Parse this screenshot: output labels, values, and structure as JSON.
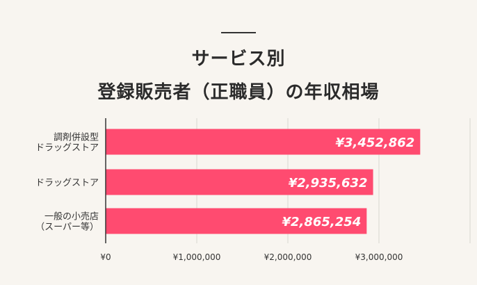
{
  "chart_data": {
    "type": "bar",
    "orientation": "horizontal",
    "title_lines": [
      "サービス別",
      "登録販売者（正職員）の年収相場"
    ],
    "categories": [
      [
        "調剤併設型",
        "ドラッグストア"
      ],
      [
        "ドラッグストア"
      ],
      [
        "一般の小売店",
        "（スーパー等）"
      ]
    ],
    "values": [
      3452862,
      2935632,
      2865254
    ],
    "value_labels": [
      "¥3,452,862",
      "¥2,935,632",
      "¥2,865,254"
    ],
    "x_ticks": [
      0,
      1000000,
      2000000,
      3000000
    ],
    "x_tick_labels": [
      "¥0",
      "¥1,000,000",
      "¥2,000,000",
      "¥3,000,000"
    ],
    "xlim": [
      0,
      4000000
    ],
    "grid": true,
    "bar_color": "#ff4b70",
    "grid_color": "#d9d6d0"
  }
}
